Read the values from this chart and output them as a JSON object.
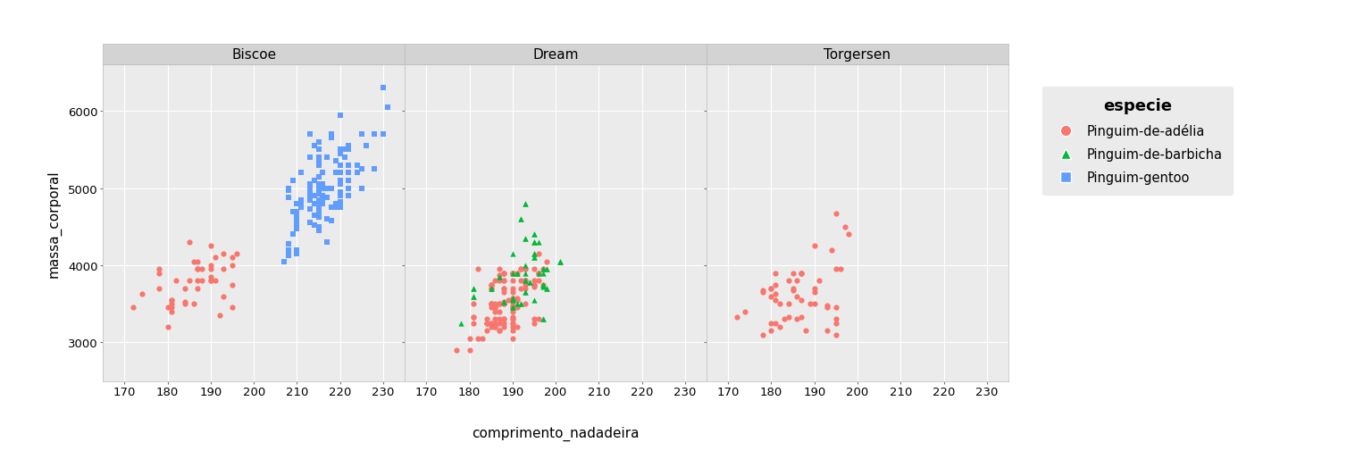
{
  "xlabel": "comprimento_nadadeira",
  "ylabel": "massa_corporal",
  "legend_title": "especie",
  "facets": [
    "Biscoe",
    "Dream",
    "Torgersen"
  ],
  "species_styles": {
    "Pinguim-de-adélia": {
      "color": "#F8766D",
      "marker": "o"
    },
    "Pinguim-de-barbicha": {
      "color": "#00BA38",
      "marker": "^"
    },
    "Pinguim-gentoo": {
      "color": "#619CFF",
      "marker": "s"
    }
  },
  "species_order": [
    "Pinguim-de-adélia",
    "Pinguim-de-barbicha",
    "Pinguim-gentoo"
  ],
  "fig_background": "#FFFFFF",
  "panel_background": "#EBEBEB",
  "strip_background": "#D3D3D3",
  "legend_background": "#EBEBEB",
  "grid_color": "#FFFFFF",
  "xlim": [
    165,
    235
  ],
  "ylim": [
    2500,
    6600
  ],
  "xticks": [
    170,
    180,
    190,
    200,
    210,
    220,
    230
  ],
  "yticks": [
    3000,
    4000,
    5000,
    6000
  ],
  "data": {
    "Biscoe": {
      "Pinguim-de-adélia": {
        "flipper": [
          172,
          174,
          180,
          178,
          178,
          188,
          184,
          195,
          196,
          190,
          180,
          181,
          184,
          182,
          195,
          186,
          187,
          190,
          178,
          181,
          185,
          195,
          181,
          187,
          193,
          187,
          188,
          190,
          192,
          185,
          190,
          187,
          191,
          186,
          193,
          181,
          190,
          195,
          181,
          191,
          187,
          193,
          184,
          190
        ],
        "body_mass": [
          3450,
          3625,
          3200,
          3900,
          3950,
          3800,
          3525,
          3450,
          4150,
          3950,
          3450,
          3550,
          3500,
          3800,
          3750,
          4050,
          3700,
          4250,
          3700,
          3450,
          4300,
          4100,
          3500,
          4050,
          3600,
          3800,
          3950,
          3800,
          3350,
          3800,
          3800,
          3950,
          4100,
          3500,
          3950,
          3550,
          3850,
          4000,
          3400,
          3800,
          3950,
          4150,
          3700,
          4000
        ]
      },
      "Pinguim-gentoo": {
        "flipper": [
          211,
          230,
          210,
          218,
          215,
          210,
          211,
          219,
          209,
          215,
          214,
          216,
          214,
          213,
          210,
          217,
          210,
          221,
          209,
          222,
          218,
          215,
          213,
          215,
          215,
          215,
          216,
          215,
          210,
          220,
          222,
          209,
          207,
          230,
          220,
          220,
          213,
          219,
          208,
          208,
          208,
          225,
          210,
          216,
          222,
          217,
          210,
          225,
          213,
          215,
          210,
          220,
          210,
          225,
          217,
          220,
          208,
          220,
          208,
          224,
          208,
          221,
          214,
          231,
          219,
          213,
          208,
          213,
          216,
          217,
          226,
          219,
          222,
          209,
          218,
          217,
          214,
          228,
          215,
          228,
          215,
          215,
          215,
          220,
          222,
          216,
          222,
          220,
          222,
          224,
          213,
          210,
          215,
          211,
          217,
          215,
          216,
          214,
          213,
          215,
          215,
          215,
          220,
          220,
          213,
          215,
          214,
          211,
          218,
          215,
          215,
          216,
          214,
          216,
          220,
          218,
          215,
          218,
          215,
          220,
          220,
          220,
          213,
          222,
          215
        ],
        "body_mass": [
          4750,
          5700,
          4600,
          5700,
          5400,
          4550,
          4800,
          5200,
          4400,
          5150,
          4650,
          5200,
          4525,
          5000,
          4475,
          5000,
          4500,
          5500,
          4700,
          5500,
          4575,
          5000,
          4950,
          5500,
          4725,
          5000,
          5000,
          4450,
          4200,
          5300,
          5550,
          4400,
          4050,
          6300,
          4750,
          5450,
          4550,
          4800,
          4200,
          4275,
          4125,
          5000,
          4525,
          5000,
          4900,
          4875,
          4625,
          5250,
          4850,
          5600,
          4800,
          5950,
          4150,
          5700,
          5400,
          4825,
          4875,
          5100,
          4975,
          5200,
          4200,
          5400,
          4800,
          6050,
          5350,
          5700,
          5000,
          4900,
          5050,
          4300,
          5550,
          4750,
          5000,
          5100,
          5650,
          4600,
          5550,
          5250,
          4700,
          5700,
          4500,
          4800,
          5300,
          4900,
          5100,
          4850,
          5300,
          5100,
          5200,
          5300,
          4725,
          4700,
          4925,
          4850,
          4875,
          4625,
          5000,
          4900,
          5050,
          4700,
          5300,
          4850,
          5300,
          5050,
          5050,
          4800,
          5100,
          5200,
          5000,
          5050,
          4950,
          4900,
          4900,
          4800,
          5500,
          4750,
          4800,
          5000,
          5350,
          5500,
          5200,
          4950,
          5400,
          5100,
          5300
        ]
      }
    },
    "Dream": {
      "Pinguim-de-adélia": {
        "flipper": [
          193,
          190,
          181,
          195,
          193,
          190,
          186,
          187,
          188,
          190,
          190,
          196,
          197,
          190,
          195,
          191,
          184,
          187,
          195,
          196,
          188,
          190,
          190,
          185,
          186,
          187,
          190,
          187,
          193,
          180,
          187,
          185,
          185,
          188,
          188,
          182,
          185,
          195,
          196,
          190,
          188,
          185,
          188,
          190,
          190,
          184,
          181,
          185,
          190,
          188,
          195,
          191,
          190,
          190,
          188,
          186,
          193,
          181,
          185,
          185,
          191,
          190,
          192,
          186,
          188,
          186,
          193,
          181,
          182,
          177,
          184,
          187,
          190,
          190,
          193,
          183,
          185,
          189,
          191,
          192,
          186,
          190,
          190,
          186,
          188,
          190,
          186,
          185,
          188,
          196,
          192,
          188,
          186,
          193,
          184,
          198,
          185,
          185,
          192,
          190,
          196,
          197,
          190,
          195,
          191,
          184,
          187,
          195,
          196,
          188,
          190,
          188,
          190,
          185,
          186,
          187,
          190,
          187,
          193,
          180,
          187,
          185,
          185,
          188
        ],
        "body_mass": [
          3500,
          3900,
          3325,
          3725,
          3950,
          3250,
          3200,
          3800,
          3250,
          3900,
          3300,
          4150,
          3950,
          3550,
          3300,
          3200,
          3150,
          3950,
          3250,
          3900,
          3300,
          3325,
          3150,
          3500,
          3450,
          3875,
          3050,
          3150,
          3700,
          3050,
          3150,
          3700,
          3500,
          3900,
          3800,
          3050,
          3750,
          3750,
          3900,
          3250,
          3900,
          3250,
          3300,
          3900,
          3575,
          3250,
          3250,
          3750,
          3200,
          3500,
          3800,
          3575,
          3575,
          3900,
          3700,
          3450,
          3750,
          3325,
          3250,
          3500,
          3450,
          3525,
          3700,
          3200,
          3800,
          3400,
          3800,
          3500,
          3950,
          2900,
          3300,
          3500,
          3450,
          3650,
          3800,
          3050,
          3700,
          3550,
          3550,
          3950,
          3250,
          3300,
          3475,
          3450,
          3900,
          3450,
          3300,
          3750,
          3200,
          3900,
          3800,
          3500,
          3500,
          3800,
          3250,
          4050,
          3500,
          3750,
          3950,
          3400,
          3800,
          3750,
          3900,
          3950,
          3900,
          3250,
          3250,
          3750,
          3300,
          3700,
          3450,
          3525,
          3700,
          3200,
          3800,
          3400,
          3800,
          3500,
          3950,
          2900,
          3300,
          3500,
          3450,
          3650
        ]
      },
      "Pinguim-de-barbicha": {
        "flipper": [
          192,
          196,
          193,
          188,
          197,
          198,
          178,
          197,
          195,
          198,
          193,
          194,
          185,
          201,
          190,
          201,
          197,
          181,
          190,
          195,
          181,
          191,
          187,
          193,
          195,
          193,
          195,
          192,
          190,
          195,
          191,
          190,
          195,
          197,
          193,
          193,
          190,
          197,
          195,
          196,
          193,
          188,
          192,
          197,
          198,
          190,
          197,
          195,
          198,
          193,
          194,
          185,
          201,
          190,
          201,
          197,
          181,
          190,
          195,
          181,
          191,
          187,
          193,
          195,
          193,
          195,
          192
        ],
        "body_mass": [
          3500,
          3900,
          3650,
          3525,
          3725,
          3950,
          3250,
          3750,
          4150,
          3700,
          3800,
          3775,
          3700,
          4050,
          3575,
          4050,
          3300,
          3700,
          3450,
          4400,
          3600,
          3900,
          3850,
          4800,
          4300,
          4350,
          4100,
          4600,
          3900,
          4150,
          3500,
          3550,
          4300,
          3900,
          4000,
          3900,
          4150,
          3950,
          3550,
          4300,
          3650,
          3525,
          3500,
          3750,
          3950,
          3575,
          3750,
          4150,
          3700,
          3800,
          3775,
          3700,
          4050,
          3575,
          4050,
          3300,
          3700,
          3450,
          4400,
          3600,
          3900,
          3850,
          4800,
          4300,
          4350,
          4100,
          4600
        ]
      }
    },
    "Torgersen": {
      "Pinguim-de-adélia": {
        "flipper": [
          181,
          186,
          195,
          193,
          190,
          181,
          195,
          193,
          190,
          186,
          180,
          182,
          191,
          198,
          185,
          195,
          197,
          184,
          194,
          174,
          180,
          189,
          185,
          180,
          187,
          183,
          187,
          172,
          180,
          178,
          178,
          188,
          184,
          195,
          196,
          190,
          180,
          181,
          184,
          182,
          195,
          186,
          187,
          190,
          178,
          181,
          185,
          195,
          181,
          187,
          193,
          187
        ],
        "body_mass": [
          3750,
          3800,
          3250,
          3450,
          3650,
          3625,
          4675,
          3475,
          4250,
          3300,
          3700,
          3200,
          3800,
          4400,
          3700,
          3450,
          4500,
          3325,
          4200,
          3400,
          3600,
          3500,
          3675,
          3250,
          3900,
          3300,
          3900,
          3325,
          3150,
          3100,
          3650,
          3150,
          3500,
          3100,
          3950,
          3700,
          3700,
          3550,
          3800,
          3500,
          3950,
          3600,
          3550,
          3500,
          3675,
          3250,
          3900,
          3300,
          3900,
          3325,
          3150,
          3900
        ]
      }
    }
  }
}
